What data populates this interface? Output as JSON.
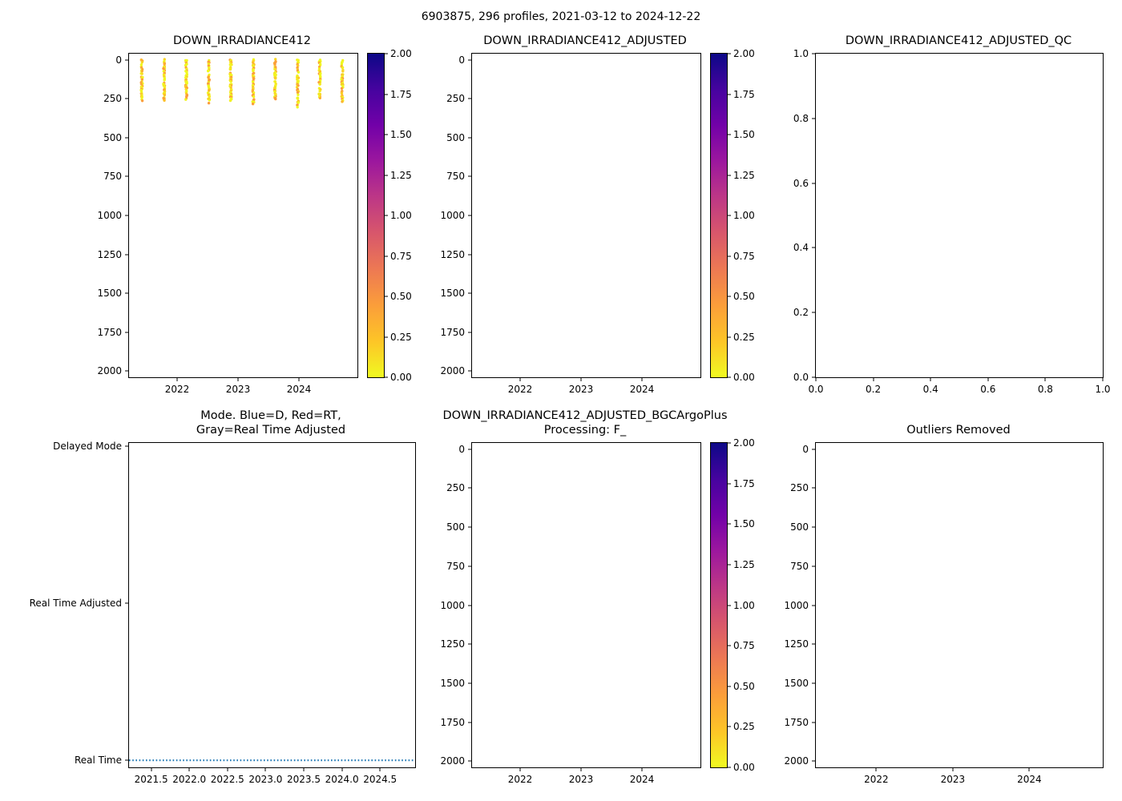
{
  "figure": {
    "suptitle": "6903875, 296 profiles, 2021-03-12 to 2024-12-22",
    "background": "#ffffff"
  },
  "colors": {
    "colormap_bottom_to_top": [
      "#f0f921",
      "#fdc527",
      "#fb9e3a",
      "#ed7953",
      "#d8576b",
      "#bd3786",
      "#9c179e",
      "#7201a8",
      "#46039f",
      "#0d0887"
    ],
    "mode_line_blue": "#1f77b4",
    "axis": "#000000"
  },
  "chart_data": [
    {
      "id": "down-irradiance412",
      "type": "scatter",
      "title_lines": [
        "DOWN_IRRADIANCE412"
      ],
      "x": {
        "range": [
          2021.21,
          2024.96
        ],
        "ticks": [
          2022,
          2023,
          2024
        ],
        "tick_labels": [
          "2022",
          "2023",
          "2024"
        ]
      },
      "y": {
        "range": [
          -40,
          2040
        ],
        "ticks": [
          0,
          250,
          500,
          750,
          1000,
          1250,
          1500,
          1750,
          2000
        ],
        "tick_labels": [
          "0",
          "250",
          "500",
          "750",
          "1000",
          "1250",
          "1500",
          "1750",
          "2000"
        ],
        "inverted": true
      },
      "colorbar": {
        "vmin": 0,
        "vmax": 2,
        "ticks": [
          0,
          0.25,
          0.5,
          0.75,
          1,
          1.25,
          1.5,
          1.75,
          2
        ],
        "tick_labels": [
          "0.00",
          "0.25",
          "0.50",
          "0.75",
          "1.00",
          "1.25",
          "1.50",
          "1.75",
          "2.00"
        ]
      },
      "scatter": {
        "profile_times": [
          2021.42,
          2021.785,
          2022.15,
          2022.52,
          2022.88,
          2023.25,
          2023.61,
          2023.98,
          2024.34,
          2024.71
        ],
        "depth_range": [
          0,
          300
        ],
        "points_per_profile": 46,
        "value_range": [
          0,
          0.45
        ],
        "seed": 42
      }
    },
    {
      "id": "down-irradiance412-adjusted",
      "type": "scatter",
      "title_lines": [
        "DOWN_IRRADIANCE412_ADJUSTED"
      ],
      "x": {
        "range": [
          2021.21,
          2024.96
        ],
        "ticks": [
          2022,
          2023,
          2024
        ],
        "tick_labels": [
          "2022",
          "2023",
          "2024"
        ]
      },
      "y": {
        "range": [
          -40,
          2040
        ],
        "ticks": [
          0,
          250,
          500,
          750,
          1000,
          1250,
          1500,
          1750,
          2000
        ],
        "tick_labels": [
          "0",
          "250",
          "500",
          "750",
          "1000",
          "1250",
          "1500",
          "1750",
          "2000"
        ],
        "inverted": true
      },
      "colorbar": {
        "vmin": 0,
        "vmax": 2,
        "ticks": [
          0,
          0.25,
          0.5,
          0.75,
          1,
          1.25,
          1.5,
          1.75,
          2
        ],
        "tick_labels": [
          "0.00",
          "0.25",
          "0.50",
          "0.75",
          "1.00",
          "1.25",
          "1.50",
          "1.75",
          "2.00"
        ]
      },
      "scatter": null
    },
    {
      "id": "down-irradiance412-adjusted-qc",
      "type": "scatter",
      "title_lines": [
        "DOWN_IRRADIANCE412_ADJUSTED_QC"
      ],
      "x": {
        "range": [
          0,
          1
        ],
        "ticks": [
          0,
          0.2,
          0.4,
          0.6,
          0.8,
          1
        ],
        "tick_labels": [
          "0.0",
          "0.2",
          "0.4",
          "0.6",
          "0.8",
          "1.0"
        ]
      },
      "y": {
        "range": [
          0,
          1
        ],
        "ticks": [
          0,
          0.2,
          0.4,
          0.6,
          0.8,
          1
        ],
        "tick_labels": [
          "0.0",
          "0.2",
          "0.4",
          "0.6",
          "0.8",
          "1.0"
        ],
        "inverted": false
      },
      "colorbar": null,
      "scatter": null
    },
    {
      "id": "mode",
      "type": "line",
      "title_lines": [
        "Mode. Blue=D, Red=RT,",
        "Gray=Real Time Adjusted"
      ],
      "x": {
        "range": [
          2021.21,
          2024.96
        ],
        "ticks": [
          2021.5,
          2022,
          2022.5,
          2023,
          2023.5,
          2024,
          2024.5
        ],
        "tick_labels": [
          "2021.5",
          "2022.0",
          "2022.5",
          "2023.0",
          "2023.5",
          "2024.0",
          "2024.5"
        ]
      },
      "y": {
        "range": [
          -0.045,
          2.02
        ],
        "ticks": [
          0,
          1,
          2
        ],
        "tick_labels": [
          "Real Time",
          "Real Time Adjusted",
          "Delayed Mode"
        ],
        "inverted": false
      },
      "colorbar": null,
      "scatter": null,
      "line": {
        "y_value": 0,
        "category": "Real Time",
        "x_start": 2021.21,
        "x_end": 2024.96,
        "color": "#1f77b4",
        "style": "dotted"
      }
    },
    {
      "id": "down-irradiance412-adjusted-bgcargoplus",
      "type": "scatter",
      "title_lines": [
        "DOWN_IRRADIANCE412_ADJUSTED_BGCArgoPlus",
        "Processing: F_"
      ],
      "x": {
        "range": [
          2021.21,
          2024.96
        ],
        "ticks": [
          2022,
          2023,
          2024
        ],
        "tick_labels": [
          "2022",
          "2023",
          "2024"
        ]
      },
      "y": {
        "range": [
          -40,
          2040
        ],
        "ticks": [
          0,
          250,
          500,
          750,
          1000,
          1250,
          1500,
          1750,
          2000
        ],
        "tick_labels": [
          "0",
          "250",
          "500",
          "750",
          "1000",
          "1250",
          "1500",
          "1750",
          "2000"
        ],
        "inverted": true
      },
      "colorbar": {
        "vmin": 0,
        "vmax": 2,
        "ticks": [
          0,
          0.25,
          0.5,
          0.75,
          1,
          1.25,
          1.5,
          1.75,
          2
        ],
        "tick_labels": [
          "0.00",
          "0.25",
          "0.50",
          "0.75",
          "1.00",
          "1.25",
          "1.50",
          "1.75",
          "2.00"
        ]
      },
      "scatter": null
    },
    {
      "id": "outliers-removed",
      "type": "scatter",
      "title_lines": [
        "Outliers Removed"
      ],
      "x": {
        "range": [
          2021.21,
          2024.96
        ],
        "ticks": [
          2022,
          2023,
          2024
        ],
        "tick_labels": [
          "2022",
          "2023",
          "2024"
        ]
      },
      "y": {
        "range": [
          -40,
          2040
        ],
        "ticks": [
          0,
          250,
          500,
          750,
          1000,
          1250,
          1500,
          1750,
          2000
        ],
        "tick_labels": [
          "0",
          "250",
          "500",
          "750",
          "1000",
          "1250",
          "1500",
          "1750",
          "2000"
        ],
        "inverted": true
      },
      "colorbar": null,
      "scatter": null
    }
  ]
}
